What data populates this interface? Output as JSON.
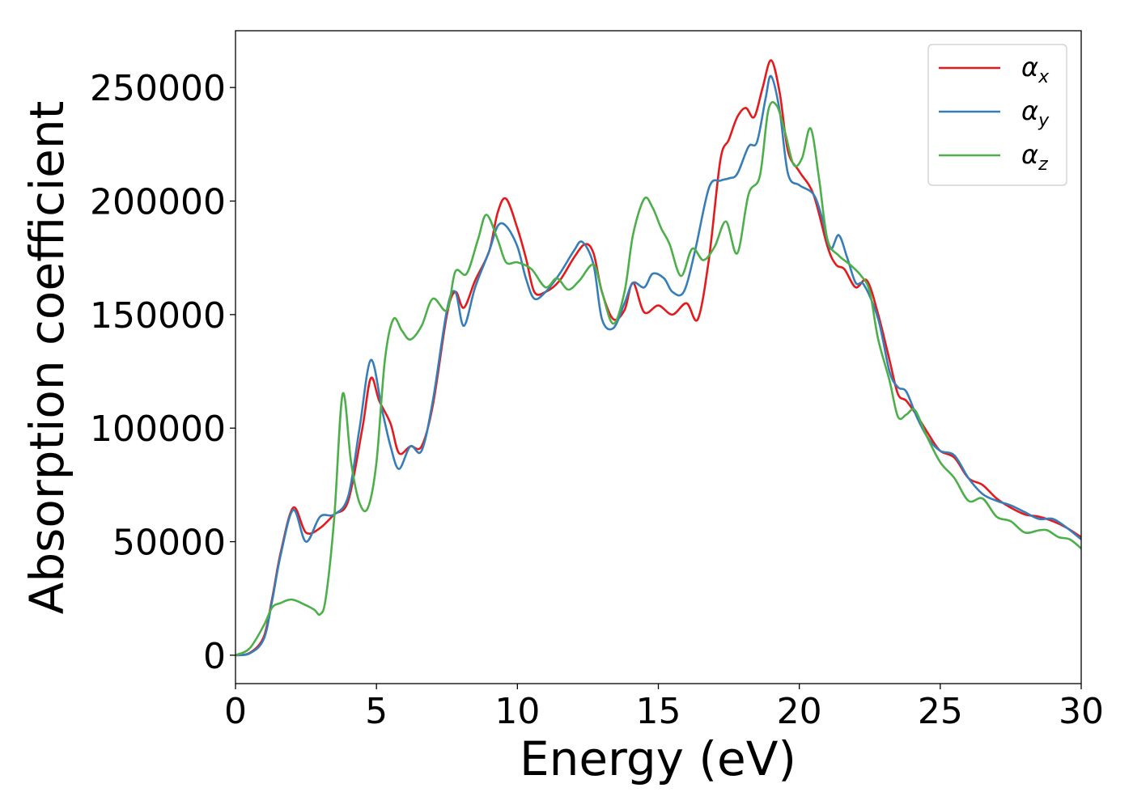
{
  "chart_data": {
    "type": "line",
    "xlabel": "Energy (eV)",
    "ylabel": "Absorption coefficient",
    "xlim": [
      0,
      30
    ],
    "ylim": [
      -12500,
      275000
    ],
    "xticks": [
      0,
      5,
      10,
      15,
      20,
      25,
      30
    ],
    "yticks": [
      0,
      50000,
      100000,
      150000,
      200000,
      250000
    ],
    "grid": false,
    "legend_position": "top-right",
    "series": [
      {
        "name": "α",
        "subscript": "x",
        "color": "#e41a1c",
        "points": [
          [
            0,
            0
          ],
          [
            0.5,
            1000
          ],
          [
            1,
            8000
          ],
          [
            1.3,
            25000
          ],
          [
            1.6,
            45000
          ],
          [
            2.05,
            65000
          ],
          [
            2.5,
            54000
          ],
          [
            3,
            56000
          ],
          [
            3.5,
            62000
          ],
          [
            4,
            68000
          ],
          [
            4.5,
            100000
          ],
          [
            4.8,
            122000
          ],
          [
            5.1,
            112000
          ],
          [
            5.5,
            102000
          ],
          [
            5.8,
            89000
          ],
          [
            6.2,
            92000
          ],
          [
            6.6,
            92000
          ],
          [
            7,
            110000
          ],
          [
            7.5,
            150000
          ],
          [
            7.8,
            160000
          ],
          [
            8.1,
            153000
          ],
          [
            8.5,
            165000
          ],
          [
            9,
            178000
          ],
          [
            9.3,
            195000
          ],
          [
            9.6,
            201000
          ],
          [
            10,
            188000
          ],
          [
            10.3,
            175000
          ],
          [
            10.6,
            160000
          ],
          [
            11,
            160000
          ],
          [
            11.5,
            165000
          ],
          [
            12,
            175000
          ],
          [
            12.4,
            181000
          ],
          [
            12.7,
            177000
          ],
          [
            13,
            160000
          ],
          [
            13.4,
            148000
          ],
          [
            13.8,
            152000
          ],
          [
            14.1,
            164000
          ],
          [
            14.5,
            151000
          ],
          [
            15,
            154000
          ],
          [
            15.5,
            150000
          ],
          [
            16,
            155000
          ],
          [
            16.4,
            148000
          ],
          [
            16.8,
            175000
          ],
          [
            17.2,
            218000
          ],
          [
            17.5,
            227000
          ],
          [
            17.8,
            237000
          ],
          [
            18.1,
            241000
          ],
          [
            18.4,
            237000
          ],
          [
            18.7,
            250000
          ],
          [
            19,
            262000
          ],
          [
            19.3,
            248000
          ],
          [
            19.6,
            222000
          ],
          [
            20,
            213000
          ],
          [
            20.5,
            203000
          ],
          [
            21,
            180000
          ],
          [
            21.3,
            172000
          ],
          [
            21.6,
            170000
          ],
          [
            22,
            162000
          ],
          [
            22.4,
            165000
          ],
          [
            22.8,
            150000
          ],
          [
            23.2,
            130000
          ],
          [
            23.5,
            115000
          ],
          [
            23.8,
            112000
          ],
          [
            24.2,
            105000
          ],
          [
            24.6,
            97000
          ],
          [
            25,
            90000
          ],
          [
            25.5,
            87000
          ],
          [
            26,
            78000
          ],
          [
            26.5,
            75000
          ],
          [
            27,
            69000
          ],
          [
            27.5,
            65000
          ],
          [
            28,
            62000
          ],
          [
            28.5,
            61000
          ],
          [
            29,
            59000
          ],
          [
            29.5,
            56000
          ],
          [
            30,
            52000
          ]
        ]
      },
      {
        "name": "α",
        "subscript": "y",
        "color": "#377eb8",
        "points": [
          [
            0,
            0
          ],
          [
            0.5,
            800
          ],
          [
            1,
            7000
          ],
          [
            1.3,
            24000
          ],
          [
            1.6,
            44000
          ],
          [
            2.05,
            64000
          ],
          [
            2.5,
            50000
          ],
          [
            3,
            61000
          ],
          [
            3.5,
            62000
          ],
          [
            4,
            70000
          ],
          [
            4.4,
            100000
          ],
          [
            4.8,
            130000
          ],
          [
            5.2,
            108000
          ],
          [
            5.5,
            92000
          ],
          [
            5.8,
            82000
          ],
          [
            6.2,
            92000
          ],
          [
            6.6,
            90000
          ],
          [
            7,
            112000
          ],
          [
            7.5,
            152000
          ],
          [
            7.8,
            160000
          ],
          [
            8.1,
            145000
          ],
          [
            8.5,
            162000
          ],
          [
            9,
            178000
          ],
          [
            9.3,
            189000
          ],
          [
            9.6,
            189000
          ],
          [
            10,
            180000
          ],
          [
            10.3,
            166000
          ],
          [
            10.6,
            157000
          ],
          [
            11,
            160000
          ],
          [
            11.5,
            168000
          ],
          [
            12,
            178000
          ],
          [
            12.3,
            182000
          ],
          [
            12.7,
            172000
          ],
          [
            13,
            148000
          ],
          [
            13.4,
            144000
          ],
          [
            13.8,
            155000
          ],
          [
            14.1,
            164000
          ],
          [
            14.5,
            162000
          ],
          [
            14.8,
            168000
          ],
          [
            15.2,
            166000
          ],
          [
            15.5,
            160000
          ],
          [
            15.9,
            160000
          ],
          [
            16.3,
            178000
          ],
          [
            16.8,
            206000
          ],
          [
            17.2,
            209000
          ],
          [
            17.5,
            210000
          ],
          [
            17.8,
            212000
          ],
          [
            18.2,
            224000
          ],
          [
            18.5,
            226000
          ],
          [
            18.8,
            245000
          ],
          [
            19,
            255000
          ],
          [
            19.3,
            240000
          ],
          [
            19.6,
            212000
          ],
          [
            20,
            207000
          ],
          [
            20.5,
            203000
          ],
          [
            20.8,
            193000
          ],
          [
            21.1,
            179000
          ],
          [
            21.4,
            185000
          ],
          [
            21.7,
            175000
          ],
          [
            22,
            164000
          ],
          [
            22.3,
            163000
          ],
          [
            22.8,
            148000
          ],
          [
            23.2,
            125000
          ],
          [
            23.5,
            118000
          ],
          [
            23.8,
            116000
          ],
          [
            24.2,
            104000
          ],
          [
            24.6,
            95000
          ],
          [
            25,
            90000
          ],
          [
            25.5,
            88000
          ],
          [
            26,
            78000
          ],
          [
            26.5,
            71000
          ],
          [
            27,
            68000
          ],
          [
            27.5,
            66000
          ],
          [
            28,
            63000
          ],
          [
            28.5,
            60000
          ],
          [
            29,
            60000
          ],
          [
            29.5,
            56000
          ],
          [
            30,
            51000
          ]
        ]
      },
      {
        "name": "α",
        "subscript": "z",
        "color": "#4daf4a",
        "points": [
          [
            0,
            0
          ],
          [
            0.5,
            3000
          ],
          [
            1,
            13000
          ],
          [
            1.3,
            21000
          ],
          [
            1.6,
            23000
          ],
          [
            2,
            24500
          ],
          [
            2.5,
            22000
          ],
          [
            2.8,
            20000
          ],
          [
            3,
            18000
          ],
          [
            3.2,
            25000
          ],
          [
            3.5,
            60000
          ],
          [
            3.8,
            115000
          ],
          [
            4.1,
            85000
          ],
          [
            4.4,
            67000
          ],
          [
            4.7,
            65000
          ],
          [
            5,
            85000
          ],
          [
            5.3,
            130000
          ],
          [
            5.6,
            148000
          ],
          [
            5.9,
            143000
          ],
          [
            6.2,
            139000
          ],
          [
            6.6,
            145000
          ],
          [
            7,
            157000
          ],
          [
            7.5,
            152000
          ],
          [
            7.8,
            169000
          ],
          [
            8.2,
            168000
          ],
          [
            8.6,
            183000
          ],
          [
            8.9,
            194000
          ],
          [
            9.3,
            183000
          ],
          [
            9.6,
            173000
          ],
          [
            10,
            173000
          ],
          [
            10.5,
            170000
          ],
          [
            11,
            162000
          ],
          [
            11.4,
            166000
          ],
          [
            11.8,
            161000
          ],
          [
            12.2,
            165000
          ],
          [
            12.7,
            172000
          ],
          [
            13,
            160000
          ],
          [
            13.4,
            146000
          ],
          [
            13.8,
            160000
          ],
          [
            14.1,
            185000
          ],
          [
            14.5,
            201000
          ],
          [
            14.8,
            197000
          ],
          [
            15.1,
            188000
          ],
          [
            15.4,
            181000
          ],
          [
            15.8,
            167000
          ],
          [
            16.2,
            179000
          ],
          [
            16.6,
            174000
          ],
          [
            17,
            180000
          ],
          [
            17.4,
            191000
          ],
          [
            17.8,
            177000
          ],
          [
            18.2,
            203000
          ],
          [
            18.6,
            211000
          ],
          [
            18.9,
            240000
          ],
          [
            19.2,
            242000
          ],
          [
            19.5,
            230000
          ],
          [
            19.8,
            216000
          ],
          [
            20.1,
            219000
          ],
          [
            20.4,
            232000
          ],
          [
            20.7,
            210000
          ],
          [
            21,
            183000
          ],
          [
            21.4,
            176000
          ],
          [
            21.8,
            172000
          ],
          [
            22.2,
            167000
          ],
          [
            22.5,
            160000
          ],
          [
            22.8,
            139000
          ],
          [
            23.2,
            121000
          ],
          [
            23.5,
            105000
          ],
          [
            23.8,
            106000
          ],
          [
            24.1,
            108000
          ],
          [
            24.5,
            97000
          ],
          [
            25,
            85000
          ],
          [
            25.5,
            78000
          ],
          [
            26,
            68000
          ],
          [
            26.5,
            69000
          ],
          [
            27,
            61000
          ],
          [
            27.5,
            59000
          ],
          [
            28,
            54000
          ],
          [
            28.5,
            55000
          ],
          [
            28.8,
            55000
          ],
          [
            29.2,
            52000
          ],
          [
            29.6,
            51000
          ],
          [
            30,
            47000
          ]
        ]
      }
    ]
  }
}
